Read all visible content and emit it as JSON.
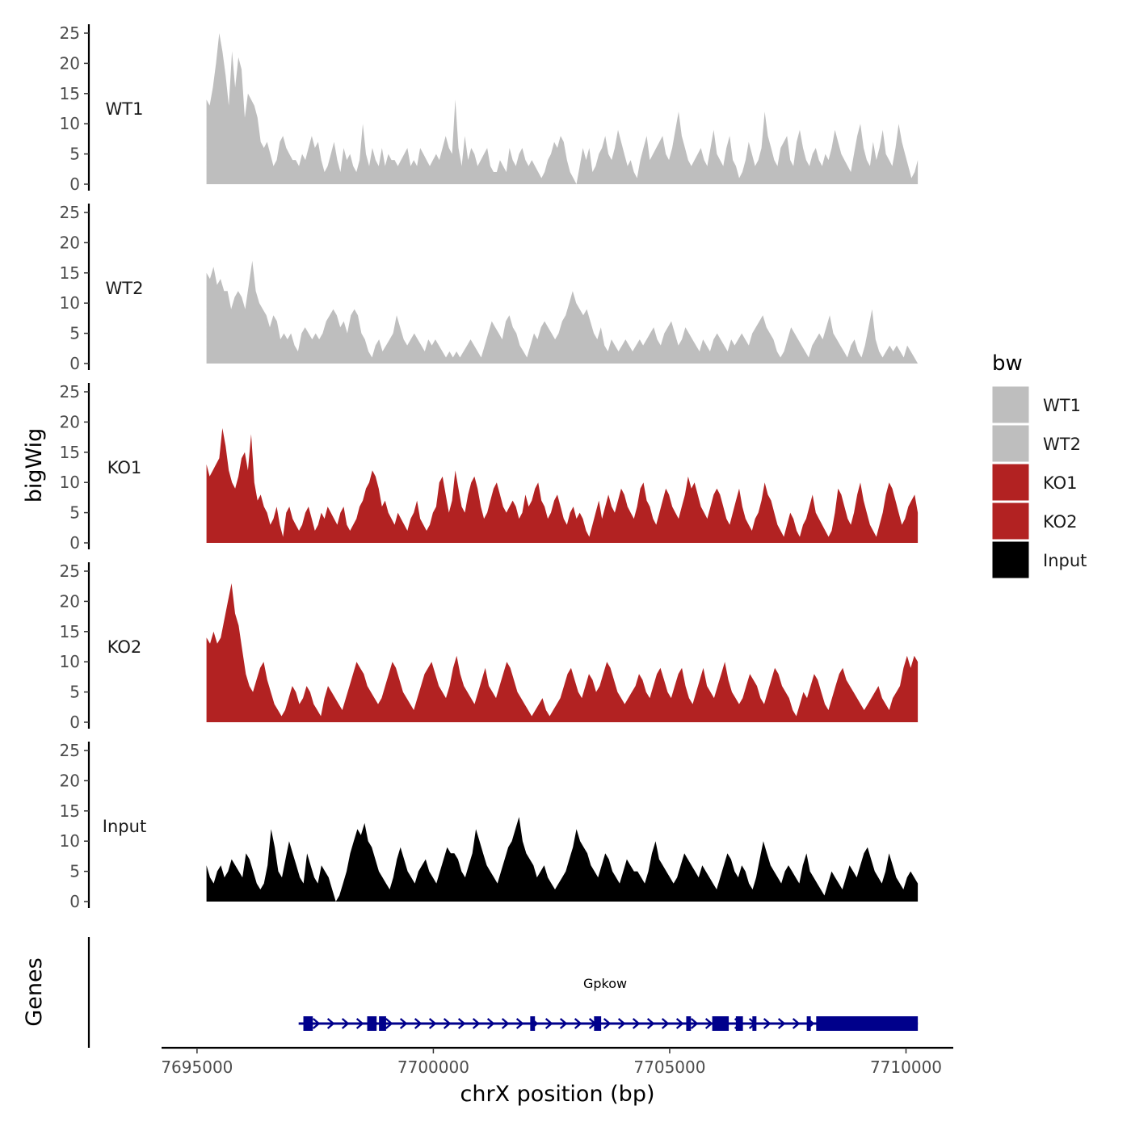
{
  "chart_data": {
    "type": "area",
    "title": "",
    "xlabel": "chrX position (bp)",
    "ylabel": "bigWig",
    "genes_label": "Genes",
    "xlim": [
      7694250,
      7711000
    ],
    "x_range": [
      7695200,
      7710250
    ],
    "x_ticks": [
      7695000,
      7700000,
      7705000,
      7710000
    ],
    "x_tick_labels": [
      "7695000",
      "7700000",
      "7705000",
      "7710000"
    ],
    "ylim": [
      0,
      25
    ],
    "y_ticks": [
      0,
      5,
      10,
      15,
      20,
      25
    ],
    "y_tick_labels": [
      "0",
      "5",
      "10",
      "15",
      "20",
      "25"
    ],
    "legend": {
      "title": "bw",
      "entries": [
        {
          "label": "WT1",
          "color": "#bebebe"
        },
        {
          "label": "WT2",
          "color": "#bebebe"
        },
        {
          "label": "KO1",
          "color": "#b22222"
        },
        {
          "label": "KO2",
          "color": "#b22222"
        },
        {
          "label": "Input",
          "color": "#000000"
        }
      ]
    },
    "series": [
      {
        "name": "WT1",
        "color": "#bebebe",
        "values": [
          14,
          13,
          16,
          20,
          25,
          22,
          18,
          13,
          22,
          16,
          21,
          19,
          11,
          15,
          14,
          13,
          11,
          7,
          6,
          7,
          5,
          3,
          4,
          7,
          8,
          6,
          5,
          4,
          4,
          3,
          5,
          4,
          6,
          8,
          6,
          7,
          4,
          2,
          3,
          5,
          7,
          4,
          2,
          6,
          4,
          5,
          3,
          2,
          4,
          10,
          5,
          3,
          6,
          4,
          3,
          6,
          3,
          5,
          4,
          4,
          3,
          4,
          5,
          6,
          3,
          4,
          3,
          6,
          5,
          4,
          3,
          4,
          5,
          4,
          6,
          8,
          6,
          5,
          14,
          6,
          3,
          8,
          4,
          6,
          5,
          3,
          4,
          5,
          6,
          3,
          2,
          2,
          4,
          3,
          2,
          6,
          4,
          3,
          5,
          6,
          4,
          3,
          4,
          3,
          2,
          1,
          2,
          4,
          5,
          7,
          6,
          8,
          7,
          4,
          2,
          1,
          0,
          3,
          6,
          4,
          6,
          2,
          3,
          5,
          6,
          8,
          5,
          4,
          6,
          9,
          7,
          5,
          3,
          4,
          2,
          1,
          4,
          6,
          8,
          4,
          5,
          6,
          7,
          8,
          5,
          4,
          6,
          9,
          12,
          8,
          6,
          4,
          3,
          4,
          5,
          6,
          4,
          3,
          6,
          9,
          5,
          4,
          3,
          6,
          8,
          4,
          3,
          1,
          2,
          4,
          7,
          5,
          3,
          4,
          6,
          12,
          8,
          6,
          4,
          3,
          6,
          7,
          8,
          4,
          3,
          7,
          9,
          6,
          4,
          3,
          5,
          6,
          4,
          3,
          5,
          4,
          6,
          9,
          7,
          5,
          4,
          3,
          2,
          5,
          8,
          10,
          6,
          4,
          3,
          7,
          4,
          6,
          9,
          5,
          4,
          3,
          6,
          10,
          7,
          5,
          3,
          1,
          2,
          4
        ]
      },
      {
        "name": "WT2",
        "color": "#bebebe",
        "values": [
          15,
          14,
          16,
          13,
          14,
          12,
          12,
          9,
          11,
          12,
          11,
          9,
          13,
          17,
          12,
          10,
          9,
          8,
          6,
          8,
          7,
          4,
          5,
          4,
          5,
          3,
          2,
          5,
          6,
          5,
          4,
          5,
          4,
          5,
          7,
          8,
          9,
          8,
          6,
          7,
          5,
          8,
          9,
          8,
          5,
          4,
          2,
          1,
          3,
          4,
          2,
          3,
          4,
          5,
          8,
          6,
          4,
          3,
          4,
          5,
          4,
          3,
          2,
          4,
          3,
          4,
          3,
          2,
          1,
          2,
          1,
          2,
          1,
          2,
          3,
          4,
          3,
          2,
          1,
          3,
          5,
          7,
          6,
          5,
          4,
          7,
          8,
          6,
          5,
          3,
          2,
          1,
          3,
          5,
          4,
          6,
          7,
          6,
          5,
          4,
          5,
          7,
          8,
          10,
          12,
          10,
          9,
          8,
          9,
          7,
          5,
          4,
          6,
          3,
          2,
          4,
          3,
          2,
          3,
          4,
          3,
          2,
          3,
          4,
          3,
          4,
          5,
          6,
          4,
          3,
          5,
          6,
          7,
          5,
          3,
          4,
          6,
          5,
          4,
          3,
          2,
          4,
          3,
          2,
          4,
          5,
          4,
          3,
          2,
          4,
          3,
          4,
          5,
          4,
          3,
          5,
          6,
          7,
          8,
          6,
          5,
          4,
          2,
          1,
          2,
          4,
          6,
          5,
          4,
          3,
          2,
          1,
          3,
          4,
          5,
          4,
          6,
          8,
          5,
          4,
          3,
          2,
          1,
          3,
          4,
          2,
          1,
          3,
          6,
          9,
          4,
          2,
          1,
          2,
          3,
          2,
          3,
          2,
          1,
          3,
          2,
          1,
          0
        ]
      },
      {
        "name": "KO1",
        "color": "#b22222",
        "values": [
          13,
          11,
          12,
          13,
          14,
          19,
          16,
          12,
          10,
          9,
          11,
          14,
          15,
          12,
          18,
          10,
          7,
          8,
          6,
          5,
          3,
          4,
          6,
          3,
          1,
          5,
          6,
          4,
          3,
          2,
          3,
          5,
          6,
          4,
          2,
          3,
          5,
          4,
          6,
          5,
          4,
          3,
          5,
          6,
          3,
          2,
          3,
          4,
          6,
          7,
          9,
          10,
          12,
          11,
          9,
          6,
          7,
          5,
          4,
          3,
          5,
          4,
          3,
          2,
          4,
          5,
          7,
          4,
          3,
          2,
          3,
          5,
          6,
          10,
          11,
          8,
          5,
          7,
          12,
          9,
          6,
          5,
          8,
          10,
          11,
          9,
          6,
          4,
          5,
          7,
          9,
          10,
          8,
          6,
          5,
          6,
          7,
          6,
          4,
          5,
          8,
          6,
          7,
          9,
          10,
          7,
          6,
          4,
          5,
          7,
          8,
          6,
          4,
          3,
          5,
          6,
          4,
          5,
          4,
          2,
          1,
          3,
          5,
          7,
          4,
          6,
          8,
          6,
          5,
          7,
          9,
          8,
          6,
          5,
          4,
          6,
          9,
          10,
          7,
          6,
          4,
          3,
          5,
          7,
          9,
          8,
          6,
          5,
          4,
          6,
          8,
          11,
          9,
          10,
          8,
          6,
          5,
          4,
          6,
          8,
          9,
          8,
          6,
          4,
          3,
          5,
          7,
          9,
          6,
          4,
          3,
          2,
          4,
          5,
          7,
          10,
          8,
          7,
          5,
          3,
          2,
          1,
          3,
          5,
          4,
          2,
          1,
          3,
          4,
          6,
          8,
          5,
          4,
          3,
          2,
          1,
          2,
          5,
          9,
          8,
          6,
          4,
          3,
          5,
          8,
          10,
          7,
          5,
          3,
          2,
          1,
          3,
          5,
          8,
          10,
          9,
          7,
          5,
          3,
          4,
          6,
          7,
          8,
          5
        ]
      },
      {
        "name": "KO2",
        "color": "#b22222",
        "values": [
          14,
          13,
          15,
          13,
          14,
          17,
          20,
          23,
          18,
          16,
          12,
          8,
          6,
          5,
          7,
          9,
          10,
          7,
          5,
          3,
          2,
          1,
          2,
          4,
          6,
          5,
          3,
          4,
          6,
          5,
          3,
          2,
          1,
          4,
          6,
          5,
          4,
          3,
          2,
          4,
          6,
          8,
          10,
          9,
          8,
          6,
          5,
          4,
          3,
          4,
          6,
          8,
          10,
          9,
          7,
          5,
          4,
          3,
          2,
          4,
          6,
          8,
          9,
          10,
          8,
          6,
          5,
          4,
          6,
          9,
          11,
          8,
          6,
          5,
          4,
          3,
          5,
          7,
          9,
          6,
          5,
          4,
          6,
          8,
          10,
          9,
          7,
          5,
          4,
          3,
          2,
          1,
          2,
          3,
          4,
          2,
          1,
          2,
          3,
          4,
          6,
          8,
          9,
          7,
          5,
          4,
          6,
          8,
          7,
          5,
          6,
          8,
          10,
          9,
          7,
          5,
          4,
          3,
          4,
          5,
          6,
          8,
          7,
          5,
          4,
          6,
          8,
          9,
          7,
          5,
          4,
          6,
          8,
          9,
          6,
          4,
          3,
          5,
          7,
          9,
          6,
          5,
          4,
          6,
          8,
          10,
          7,
          5,
          4,
          3,
          4,
          6,
          8,
          7,
          6,
          4,
          3,
          5,
          7,
          9,
          8,
          6,
          5,
          4,
          2,
          1,
          3,
          5,
          4,
          6,
          8,
          7,
          5,
          3,
          2,
          4,
          6,
          8,
          9,
          7,
          6,
          5,
          4,
          3,
          2,
          3,
          4,
          5,
          6,
          4,
          3,
          2,
          4,
          5,
          6,
          9,
          11,
          9,
          11,
          10
        ]
      },
      {
        "name": "Input",
        "color": "#000000",
        "values": [
          6,
          4,
          3,
          5,
          6,
          4,
          5,
          7,
          6,
          5,
          4,
          8,
          7,
          5,
          3,
          2,
          3,
          6,
          12,
          9,
          5,
          4,
          7,
          10,
          8,
          6,
          4,
          3,
          8,
          6,
          4,
          3,
          6,
          5,
          4,
          2,
          0,
          1,
          3,
          5,
          8,
          10,
          12,
          11,
          13,
          10,
          9,
          7,
          5,
          4,
          3,
          2,
          4,
          7,
          9,
          7,
          5,
          4,
          3,
          5,
          6,
          7,
          5,
          4,
          3,
          5,
          7,
          9,
          8,
          8,
          7,
          5,
          4,
          6,
          8,
          12,
          10,
          8,
          6,
          5,
          4,
          3,
          5,
          7,
          9,
          10,
          12,
          14,
          10,
          8,
          7,
          6,
          4,
          5,
          6,
          4,
          3,
          2,
          3,
          4,
          5,
          7,
          9,
          12,
          10,
          9,
          8,
          6,
          5,
          4,
          6,
          8,
          7,
          5,
          4,
          3,
          5,
          7,
          6,
          5,
          5,
          4,
          3,
          5,
          8,
          10,
          7,
          6,
          5,
          4,
          3,
          4,
          6,
          8,
          7,
          6,
          5,
          4,
          6,
          5,
          4,
          3,
          2,
          4,
          6,
          8,
          7,
          5,
          4,
          6,
          5,
          3,
          2,
          4,
          7,
          10,
          8,
          6,
          5,
          4,
          3,
          5,
          6,
          5,
          4,
          3,
          6,
          8,
          5,
          4,
          3,
          2,
          1,
          3,
          5,
          4,
          3,
          2,
          4,
          6,
          5,
          4,
          6,
          8,
          9,
          7,
          5,
          4,
          3,
          5,
          8,
          6,
          4,
          3,
          2,
          4,
          5,
          4,
          3
        ]
      }
    ],
    "genes": [
      {
        "name": "Gpkow",
        "strand": "+",
        "start": 7697150,
        "end": 7710250,
        "exons": [
          [
            7697250,
            7697450
          ],
          [
            7698600,
            7698800
          ],
          [
            7698850,
            7699000
          ],
          [
            7702050,
            7702150
          ],
          [
            7703400,
            7703550
          ],
          [
            7705350,
            7705450
          ],
          [
            7705900,
            7706250
          ],
          [
            7706400,
            7706550
          ],
          [
            7706750,
            7706800
          ],
          [
            7707900,
            7707950
          ],
          [
            7708100,
            7710250
          ]
        ]
      }
    ]
  }
}
